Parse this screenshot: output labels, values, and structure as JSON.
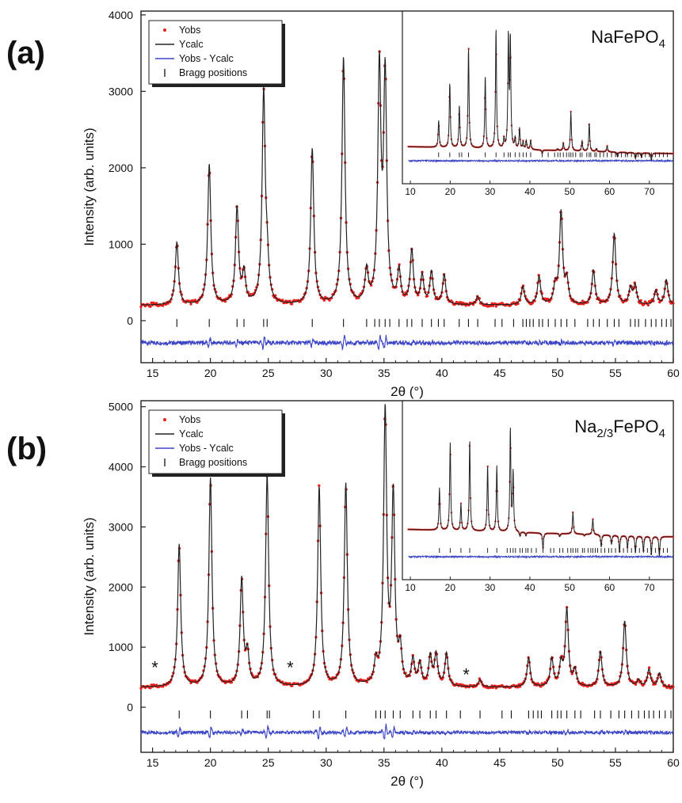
{
  "chart_data": [
    {
      "type": "line",
      "panel_label": "(a)",
      "compound": {
        "base": "NaFePO",
        "sub": "4",
        "tail": ""
      },
      "xlabel": "2θ (°)",
      "ylabel": "Intensity (arb. units)",
      "xlim": [
        14,
        60
      ],
      "ylim": [
        -550,
        4050
      ],
      "x_ticks": [
        "15",
        "20",
        "25",
        "30",
        "35",
        "40",
        "45",
        "50",
        "55",
        "60"
      ],
      "y_ticks": [
        "0",
        "1000",
        "2000",
        "3000",
        "4000"
      ],
      "legend": [
        "Yobs",
        "Ycalc",
        "Yobs - Ycalc",
        "Bragg positions"
      ],
      "background": 200,
      "bragg_baseline": -30,
      "diff_baseline": -290,
      "peaks": [
        {
          "x": 17.1,
          "y": 1020
        },
        {
          "x": 19.9,
          "y": 2040
        },
        {
          "x": 22.3,
          "y": 1460
        },
        {
          "x": 22.9,
          "y": 600
        },
        {
          "x": 24.6,
          "y": 2950
        },
        {
          "x": 24.9,
          "y": 650
        },
        {
          "x": 28.8,
          "y": 2240
        },
        {
          "x": 31.5,
          "y": 3430
        },
        {
          "x": 33.5,
          "y": 620
        },
        {
          "x": 34.6,
          "y": 3230
        },
        {
          "x": 35.1,
          "y": 3140
        },
        {
          "x": 36.3,
          "y": 620
        },
        {
          "x": 37.4,
          "y": 900
        },
        {
          "x": 38.3,
          "y": 570
        },
        {
          "x": 39.1,
          "y": 620
        },
        {
          "x": 40.2,
          "y": 590
        },
        {
          "x": 43.1,
          "y": 310
        },
        {
          "x": 47.0,
          "y": 440
        },
        {
          "x": 48.4,
          "y": 570
        },
        {
          "x": 49.8,
          "y": 430
        },
        {
          "x": 50.3,
          "y": 1400
        },
        {
          "x": 50.8,
          "y": 500
        },
        {
          "x": 53.1,
          "y": 650
        },
        {
          "x": 54.9,
          "y": 1130
        },
        {
          "x": 56.3,
          "y": 410
        },
        {
          "x": 56.7,
          "y": 450
        },
        {
          "x": 58.5,
          "y": 390
        },
        {
          "x": 59.4,
          "y": 530
        }
      ],
      "bragg_positions": [
        17.1,
        19.9,
        22.3,
        22.9,
        24.6,
        24.9,
        28.8,
        31.5,
        33.5,
        34.2,
        34.6,
        35.1,
        35.5,
        36.3,
        37.0,
        37.4,
        38.3,
        39.1,
        39.7,
        40.2,
        41.5,
        42.3,
        43.1,
        44.6,
        45.2,
        46.2,
        47.0,
        47.3,
        47.6,
        47.9,
        48.4,
        48.7,
        49.2,
        49.8,
        50.3,
        50.8,
        51.5,
        52.6,
        53.1,
        53.6,
        54.3,
        54.9,
        55.3,
        56.3,
        56.7,
        57.0,
        57.6,
        58.1,
        58.5,
        59.0,
        59.4,
        59.8
      ],
      "markers": [],
      "inset": {
        "xlim": [
          8,
          76
        ],
        "x_ticks": [
          "10",
          "20",
          "30",
          "40",
          "50",
          "60",
          "70"
        ],
        "background": 0.1,
        "peaks": [
          {
            "x": 17.1,
            "y": 0.28
          },
          {
            "x": 19.9,
            "y": 0.53
          },
          {
            "x": 22.3,
            "y": 0.38
          },
          {
            "x": 24.6,
            "y": 0.77
          },
          {
            "x": 28.8,
            "y": 0.58
          },
          {
            "x": 31.5,
            "y": 0.9
          },
          {
            "x": 33.5,
            "y": 0.16
          },
          {
            "x": 34.6,
            "y": 0.84
          },
          {
            "x": 35.1,
            "y": 0.82
          },
          {
            "x": 36.3,
            "y": 0.17
          },
          {
            "x": 37.4,
            "y": 0.24
          },
          {
            "x": 38.3,
            "y": 0.15
          },
          {
            "x": 39.1,
            "y": 0.16
          },
          {
            "x": 40.2,
            "y": 0.16
          },
          {
            "x": 43.1,
            "y": 0.08
          },
          {
            "x": 47.0,
            "y": 0.11
          },
          {
            "x": 48.4,
            "y": 0.15
          },
          {
            "x": 50.3,
            "y": 0.36
          },
          {
            "x": 53.1,
            "y": 0.17
          },
          {
            "x": 54.9,
            "y": 0.29
          },
          {
            "x": 56.7,
            "y": 0.12
          },
          {
            "x": 58.5,
            "y": 0.1
          },
          {
            "x": 59.4,
            "y": 0.14
          },
          {
            "x": 62.0,
            "y": 0.07
          },
          {
            "x": 64.5,
            "y": 0.09
          },
          {
            "x": 66.5,
            "y": 0.06
          },
          {
            "x": 68.0,
            "y": 0.07
          },
          {
            "x": 70.5,
            "y": 0.05
          }
        ],
        "bragg_positions": [
          17.1,
          19.9,
          22.3,
          22.9,
          24.6,
          28.8,
          31.5,
          33.5,
          34.6,
          35.1,
          36.3,
          37.4,
          38.3,
          39.1,
          40.2,
          43.1,
          44.6,
          46.2,
          47.0,
          47.6,
          48.4,
          49.2,
          49.8,
          50.3,
          50.8,
          51.5,
          52.6,
          53.1,
          54.3,
          54.9,
          55.3,
          56.3,
          56.7,
          57.6,
          58.5,
          59.4,
          60.5,
          61.5,
          62.0,
          63.0,
          64.0,
          64.5,
          65.5,
          66.5,
          67.2,
          68.0,
          69.0,
          70.0,
          70.5,
          71.5,
          72.5,
          73.5,
          74.5
        ]
      }
    },
    {
      "type": "line",
      "panel_label": "(b)",
      "compound": {
        "base": "Na",
        "sub": "2/3",
        "tail": "FePO4"
      },
      "xlabel": "2θ (°)",
      "ylabel": "Intensity (arb. units)",
      "xlim": [
        14,
        60
      ],
      "ylim": [
        -750,
        5100
      ],
      "x_ticks": [
        "15",
        "20",
        "25",
        "30",
        "35",
        "40",
        "45",
        "50",
        "55",
        "60"
      ],
      "y_ticks": [
        "0",
        "1000",
        "2000",
        "3000",
        "4000",
        "5000"
      ],
      "legend": [
        "Yobs",
        "Ycalc",
        "Yobs - Ycalc",
        "Bragg positions"
      ],
      "background": 330,
      "bragg_baseline": -120,
      "diff_baseline": -420,
      "peaks": [
        {
          "x": 17.3,
          "y": 2700
        },
        {
          "x": 20.0,
          "y": 3800
        },
        {
          "x": 22.7,
          "y": 2100
        },
        {
          "x": 23.2,
          "y": 850
        },
        {
          "x": 24.9,
          "y": 3850
        },
        {
          "x": 29.4,
          "y": 3650
        },
        {
          "x": 31.7,
          "y": 3700
        },
        {
          "x": 34.3,
          "y": 680
        },
        {
          "x": 35.1,
          "y": 4870
        },
        {
          "x": 35.8,
          "y": 3450
        },
        {
          "x": 36.4,
          "y": 900
        },
        {
          "x": 37.5,
          "y": 760
        },
        {
          "x": 38.1,
          "y": 700
        },
        {
          "x": 39.0,
          "y": 820
        },
        {
          "x": 39.5,
          "y": 850
        },
        {
          "x": 40.4,
          "y": 880
        },
        {
          "x": 43.3,
          "y": 450
        },
        {
          "x": 47.5,
          "y": 820
        },
        {
          "x": 49.5,
          "y": 800
        },
        {
          "x": 50.3,
          "y": 700
        },
        {
          "x": 50.8,
          "y": 1600
        },
        {
          "x": 51.5,
          "y": 600
        },
        {
          "x": 53.7,
          "y": 920
        },
        {
          "x": 55.8,
          "y": 1430
        },
        {
          "x": 57.0,
          "y": 440
        },
        {
          "x": 57.9,
          "y": 620
        },
        {
          "x": 58.8,
          "y": 560
        }
      ],
      "bragg_positions": [
        17.3,
        20.0,
        22.7,
        23.2,
        24.9,
        25.1,
        28.9,
        29.4,
        31.7,
        34.3,
        34.7,
        35.1,
        35.8,
        36.4,
        37.5,
        38.1,
        39.0,
        39.5,
        40.4,
        41.6,
        43.3,
        45.2,
        46.0,
        47.5,
        47.9,
        48.3,
        48.6,
        49.5,
        50.0,
        50.3,
        50.8,
        51.5,
        52.0,
        53.2,
        53.7,
        54.6,
        55.3,
        55.8,
        56.4,
        57.0,
        57.5,
        57.9,
        58.3,
        58.8,
        59.3,
        59.8
      ],
      "markers": [
        {
          "label": "*",
          "x": 15.2,
          "y": 560
        },
        {
          "label": "*",
          "x": 26.9,
          "y": 560
        },
        {
          "label": "*",
          "x": 42.1,
          "y": 440
        }
      ],
      "inset": {
        "xlim": [
          8,
          76
        ],
        "x_ticks": [
          "10",
          "20",
          "30",
          "40",
          "50",
          "60",
          "70"
        ],
        "background": 0.18,
        "peaks": [
          {
            "x": 17.3,
            "y": 0.45
          },
          {
            "x": 20.0,
            "y": 0.74
          },
          {
            "x": 22.7,
            "y": 0.35
          },
          {
            "x": 24.9,
            "y": 0.76
          },
          {
            "x": 29.4,
            "y": 0.6
          },
          {
            "x": 31.7,
            "y": 0.6
          },
          {
            "x": 35.1,
            "y": 0.84
          },
          {
            "x": 35.8,
            "y": 0.56
          },
          {
            "x": 37.5,
            "y": 0.15
          },
          {
            "x": 39.0,
            "y": 0.16
          },
          {
            "x": 40.4,
            "y": 0.18
          },
          {
            "x": 43.3,
            "y": 0.08
          },
          {
            "x": 47.5,
            "y": 0.16
          },
          {
            "x": 49.5,
            "y": 0.18
          },
          {
            "x": 50.8,
            "y": 0.32
          },
          {
            "x": 53.7,
            "y": 0.17
          },
          {
            "x": 55.8,
            "y": 0.28
          },
          {
            "x": 57.9,
            "y": 0.1
          },
          {
            "x": 60.5,
            "y": 0.12
          },
          {
            "x": 62.5,
            "y": 0.07
          },
          {
            "x": 64.5,
            "y": 0.1
          },
          {
            "x": 66.5,
            "y": 0.07
          },
          {
            "x": 68.5,
            "y": 0.08
          },
          {
            "x": 70.5,
            "y": 0.06
          },
          {
            "x": 72.5,
            "y": 0.05
          }
        ],
        "bragg_positions": [
          17.3,
          20.0,
          22.7,
          24.9,
          29.4,
          31.7,
          34.3,
          35.1,
          35.8,
          36.4,
          37.5,
          38.1,
          39.0,
          39.5,
          40.4,
          41.6,
          43.3,
          45.2,
          46.0,
          47.5,
          48.3,
          49.5,
          50.3,
          50.8,
          51.5,
          52.0,
          53.2,
          53.7,
          54.6,
          55.3,
          55.8,
          56.4,
          57.0,
          57.9,
          58.8,
          59.8,
          60.5,
          61.5,
          62.5,
          63.5,
          64.5,
          65.5,
          66.5,
          67.5,
          68.5,
          69.5,
          70.5,
          71.5,
          72.5,
          73.5,
          74.5
        ]
      }
    }
  ]
}
